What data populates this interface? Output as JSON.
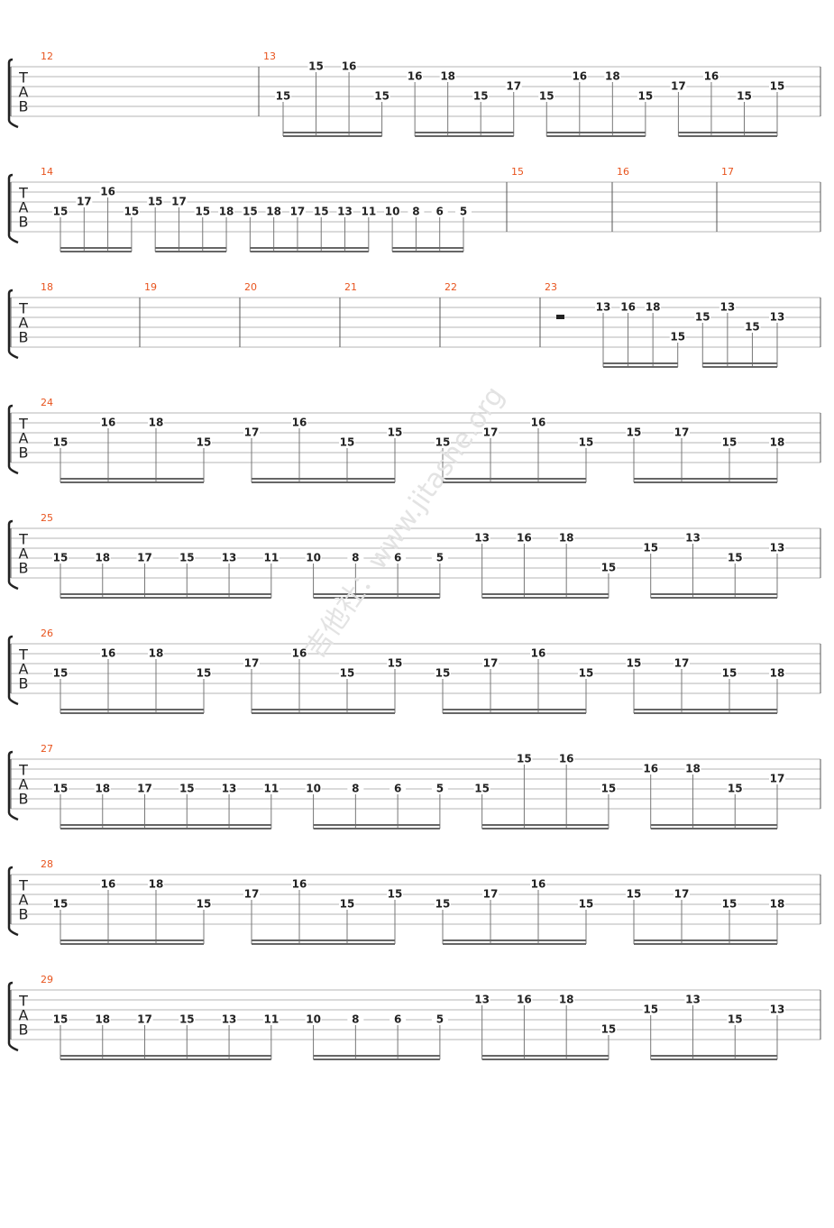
{
  "tab_clef": [
    "T",
    "A",
    "B"
  ],
  "watermark": "吉他社：www.jitashe.org",
  "systems": [
    {
      "measures": [
        {
          "number": "12",
          "groups": []
        },
        {
          "number": "13",
          "groups": [
            [
              {
                "fret": 15,
                "string": 4
              },
              {
                "fret": 15,
                "string": 1
              },
              {
                "fret": 16,
                "string": 1
              },
              {
                "fret": 15,
                "string": 4
              }
            ],
            [
              {
                "fret": 16,
                "string": 2
              },
              {
                "fret": 18,
                "string": 2
              },
              {
                "fret": 15,
                "string": 4
              },
              {
                "fret": 17,
                "string": 3
              }
            ],
            [
              {
                "fret": 15,
                "string": 4
              },
              {
                "fret": 16,
                "string": 2
              },
              {
                "fret": 18,
                "string": 2
              },
              {
                "fret": 15,
                "string": 4
              }
            ],
            [
              {
                "fret": 17,
                "string": 3
              },
              {
                "fret": 16,
                "string": 2
              },
              {
                "fret": 15,
                "string": 4
              },
              {
                "fret": 15,
                "string": 3
              }
            ]
          ]
        }
      ]
    },
    {
      "measures": [
        {
          "number": "14",
          "groups": [
            [
              {
                "fret": 15,
                "string": 4
              },
              {
                "fret": 17,
                "string": 3
              },
              {
                "fret": 16,
                "string": 2
              },
              {
                "fret": 15,
                "string": 4
              }
            ],
            [
              {
                "fret": 15,
                "string": 3
              },
              {
                "fret": 17,
                "string": 3
              },
              {
                "fret": 15,
                "string": 4
              },
              {
                "fret": 18,
                "string": 4
              }
            ],
            [
              {
                "fret": 15,
                "string": 4
              },
              {
                "fret": 18,
                "string": 4
              },
              {
                "fret": 17,
                "string": 4
              },
              {
                "fret": 15,
                "string": 4
              },
              {
                "fret": 13,
                "string": 4
              },
              {
                "fret": 11,
                "string": 4
              }
            ],
            [
              {
                "fret": 10,
                "string": 4
              },
              {
                "fret": 8,
                "string": 4
              },
              {
                "fret": 6,
                "string": 4
              },
              {
                "fret": 5,
                "string": 4
              }
            ]
          ]
        },
        {
          "number": "15",
          "groups": []
        },
        {
          "number": "16",
          "groups": []
        },
        {
          "number": "17",
          "groups": []
        }
      ]
    },
    {
      "measures": [
        {
          "number": "18",
          "groups": []
        },
        {
          "number": "19",
          "groups": []
        },
        {
          "number": "20",
          "groups": []
        },
        {
          "number": "21",
          "groups": []
        },
        {
          "number": "22",
          "groups": []
        },
        {
          "number": "23",
          "rest": true,
          "groups": [
            [
              {
                "fret": 13,
                "string": 2
              },
              {
                "fret": 16,
                "string": 2
              },
              {
                "fret": 18,
                "string": 2
              },
              {
                "fret": 15,
                "string": 5
              }
            ],
            [
              {
                "fret": 15,
                "string": 3
              },
              {
                "fret": 13,
                "string": 2
              },
              {
                "fret": 15,
                "string": 4
              },
              {
                "fret": 13,
                "string": 3
              }
            ]
          ]
        }
      ]
    },
    {
      "measures": [
        {
          "number": "24",
          "groups": [
            [
              {
                "fret": 15,
                "string": 4
              },
              {
                "fret": 16,
                "string": 2
              },
              {
                "fret": 18,
                "string": 2
              },
              {
                "fret": 15,
                "string": 4
              }
            ],
            [
              {
                "fret": 17,
                "string": 3
              },
              {
                "fret": 16,
                "string": 2
              },
              {
                "fret": 15,
                "string": 4
              },
              {
                "fret": 15,
                "string": 3
              }
            ],
            [
              {
                "fret": 15,
                "string": 4
              },
              {
                "fret": 17,
                "string": 3
              },
              {
                "fret": 16,
                "string": 2
              },
              {
                "fret": 15,
                "string": 4
              }
            ],
            [
              {
                "fret": 15,
                "string": 3
              },
              {
                "fret": 17,
                "string": 3
              },
              {
                "fret": 15,
                "string": 4
              },
              {
                "fret": 18,
                "string": 4
              }
            ]
          ]
        }
      ]
    },
    {
      "measures": [
        {
          "number": "25",
          "groups": [
            [
              {
                "fret": 15,
                "string": 4
              },
              {
                "fret": 18,
                "string": 4
              },
              {
                "fret": 17,
                "string": 4
              },
              {
                "fret": 15,
                "string": 4
              },
              {
                "fret": 13,
                "string": 4
              },
              {
                "fret": 11,
                "string": 4
              }
            ],
            [
              {
                "fret": 10,
                "string": 4
              },
              {
                "fret": 8,
                "string": 4
              },
              {
                "fret": 6,
                "string": 4
              },
              {
                "fret": 5,
                "string": 4
              }
            ],
            [
              {
                "fret": 13,
                "string": 2
              },
              {
                "fret": 16,
                "string": 2
              },
              {
                "fret": 18,
                "string": 2
              },
              {
                "fret": 15,
                "string": 5
              }
            ],
            [
              {
                "fret": 15,
                "string": 3
              },
              {
                "fret": 13,
                "string": 2
              },
              {
                "fret": 15,
                "string": 4
              },
              {
                "fret": 13,
                "string": 3
              }
            ]
          ]
        }
      ]
    },
    {
      "measures": [
        {
          "number": "26",
          "groups": [
            [
              {
                "fret": 15,
                "string": 4
              },
              {
                "fret": 16,
                "string": 2
              },
              {
                "fret": 18,
                "string": 2
              },
              {
                "fret": 15,
                "string": 4
              }
            ],
            [
              {
                "fret": 17,
                "string": 3
              },
              {
                "fret": 16,
                "string": 2
              },
              {
                "fret": 15,
                "string": 4
              },
              {
                "fret": 15,
                "string": 3
              }
            ],
            [
              {
                "fret": 15,
                "string": 4
              },
              {
                "fret": 17,
                "string": 3
              },
              {
                "fret": 16,
                "string": 2
              },
              {
                "fret": 15,
                "string": 4
              }
            ],
            [
              {
                "fret": 15,
                "string": 3
              },
              {
                "fret": 17,
                "string": 3
              },
              {
                "fret": 15,
                "string": 4
              },
              {
                "fret": 18,
                "string": 4
              }
            ]
          ]
        }
      ]
    },
    {
      "measures": [
        {
          "number": "27",
          "groups": [
            [
              {
                "fret": 15,
                "string": 4
              },
              {
                "fret": 18,
                "string": 4
              },
              {
                "fret": 17,
                "string": 4
              },
              {
                "fret": 15,
                "string": 4
              },
              {
                "fret": 13,
                "string": 4
              },
              {
                "fret": 11,
                "string": 4
              }
            ],
            [
              {
                "fret": 10,
                "string": 4
              },
              {
                "fret": 8,
                "string": 4
              },
              {
                "fret": 6,
                "string": 4
              },
              {
                "fret": 5,
                "string": 4
              }
            ],
            [
              {
                "fret": 15,
                "string": 4
              },
              {
                "fret": 15,
                "string": 1
              },
              {
                "fret": 16,
                "string": 1
              },
              {
                "fret": 15,
                "string": 4
              }
            ],
            [
              {
                "fret": 16,
                "string": 2
              },
              {
                "fret": 18,
                "string": 2
              },
              {
                "fret": 15,
                "string": 4
              },
              {
                "fret": 17,
                "string": 3
              }
            ]
          ]
        }
      ]
    },
    {
      "measures": [
        {
          "number": "28",
          "groups": [
            [
              {
                "fret": 15,
                "string": 4
              },
              {
                "fret": 16,
                "string": 2
              },
              {
                "fret": 18,
                "string": 2
              },
              {
                "fret": 15,
                "string": 4
              }
            ],
            [
              {
                "fret": 17,
                "string": 3
              },
              {
                "fret": 16,
                "string": 2
              },
              {
                "fret": 15,
                "string": 4
              },
              {
                "fret": 15,
                "string": 3
              }
            ],
            [
              {
                "fret": 15,
                "string": 4
              },
              {
                "fret": 17,
                "string": 3
              },
              {
                "fret": 16,
                "string": 2
              },
              {
                "fret": 15,
                "string": 4
              }
            ],
            [
              {
                "fret": 15,
                "string": 3
              },
              {
                "fret": 17,
                "string": 3
              },
              {
                "fret": 15,
                "string": 4
              },
              {
                "fret": 18,
                "string": 4
              }
            ]
          ]
        }
      ]
    },
    {
      "measures": [
        {
          "number": "29",
          "groups": [
            [
              {
                "fret": 15,
                "string": 4
              },
              {
                "fret": 18,
                "string": 4
              },
              {
                "fret": 17,
                "string": 4
              },
              {
                "fret": 15,
                "string": 4
              },
              {
                "fret": 13,
                "string": 4
              },
              {
                "fret": 11,
                "string": 4
              }
            ],
            [
              {
                "fret": 10,
                "string": 4
              },
              {
                "fret": 8,
                "string": 4
              },
              {
                "fret": 6,
                "string": 4
              },
              {
                "fret": 5,
                "string": 4
              }
            ],
            [
              {
                "fret": 13,
                "string": 2
              },
              {
                "fret": 16,
                "string": 2
              },
              {
                "fret": 18,
                "string": 2
              },
              {
                "fret": 15,
                "string": 5
              }
            ],
            [
              {
                "fret": 15,
                "string": 3
              },
              {
                "fret": 13,
                "string": 2
              },
              {
                "fret": 15,
                "string": 4
              },
              {
                "fret": 13,
                "string": 3
              }
            ]
          ]
        }
      ]
    }
  ]
}
